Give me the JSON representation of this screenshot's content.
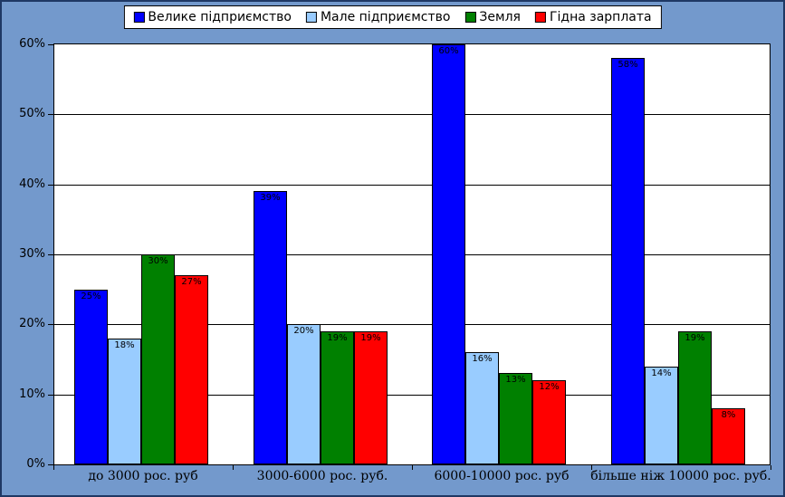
{
  "chart_data": {
    "type": "bar",
    "title": "",
    "xlabel": "",
    "ylabel": "",
    "categories": [
      "до 3000 рос. руб",
      "3000-6000 рос. руб.",
      "6000-10000 рос. руб",
      "більше ніж 10000 рос. руб."
    ],
    "series": [
      {
        "name": "Велике підприємство",
        "color": "#0000FF",
        "values": [
          25,
          39,
          60,
          58
        ],
        "labels": [
          "25%",
          "39%",
          "60%",
          "58%"
        ]
      },
      {
        "name": "Мале підприємство",
        "color": "#99CCFF",
        "values": [
          18,
          20,
          16,
          14
        ],
        "labels": [
          "18%",
          "20%",
          "16%",
          "14%"
        ]
      },
      {
        "name": "Земля",
        "color": "#008000",
        "values": [
          30,
          19,
          13,
          19
        ],
        "labels": [
          "30%",
          "19%",
          "13%",
          "19%"
        ]
      },
      {
        "name": "Гідна зарплата",
        "color": "#FF0000",
        "values": [
          27,
          19,
          12,
          8
        ],
        "labels": [
          "27%",
          "19%",
          "12%",
          "8%"
        ]
      }
    ],
    "y_ticks": [
      "0%",
      "10%",
      "20%",
      "30%",
      "40%",
      "50%",
      "60%"
    ],
    "y_tick_values": [
      0,
      10,
      20,
      30,
      40,
      50,
      60
    ],
    "ylim": [
      0,
      60
    ],
    "grid": true,
    "legend_position": "top"
  },
  "colors": {
    "page_background": "#7399CC",
    "frame_border": "#1F3864",
    "plot_background": "#FFFFFF",
    "gridline": "#000000",
    "text": "#000000"
  }
}
